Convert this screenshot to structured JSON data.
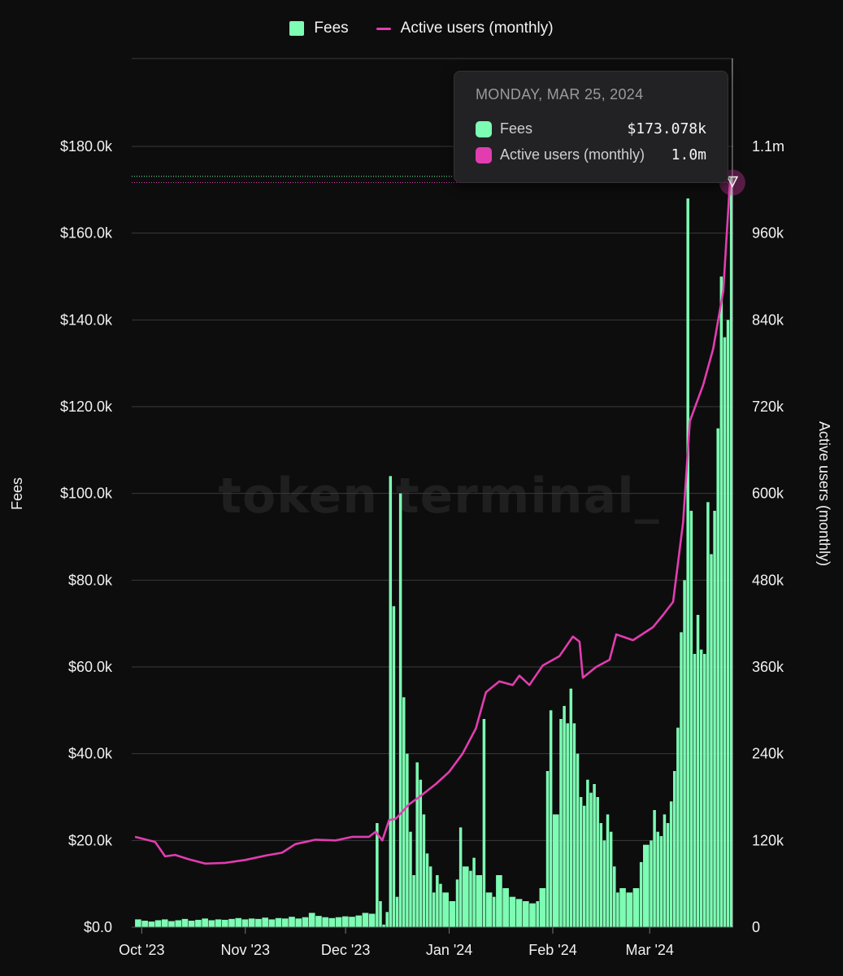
{
  "legend": {
    "fees_label": "Fees",
    "users_label": "Active users (monthly)"
  },
  "watermark": "token terminal_",
  "tooltip": {
    "date": "MONDAY, MAR 25, 2024",
    "fees_label": "Fees",
    "fees_value": "$173.078k",
    "users_label": "Active users (monthly)",
    "users_value": "1.0m"
  },
  "colors": {
    "background": "#0d0d0d",
    "fees": "#7dfcb3",
    "users": "#e23db0",
    "grid": "#3a3a3a"
  },
  "chart_data": {
    "type": "bar",
    "xlabel": "",
    "ylabel": "Fees",
    "y2label": "Active users (monthly)",
    "ylim": [
      0,
      180000
    ],
    "y2lim": [
      0,
      1080000
    ],
    "grid": true,
    "legend_position": "top-center",
    "x_tick_labels": [
      "Oct '23",
      "Nov '23",
      "Dec '23",
      "Jan '24",
      "Feb '24",
      "Mar '24"
    ],
    "y_tick_labels": [
      "$0.0",
      "$20.0k",
      "$40.0k",
      "$60.0k",
      "$80.0k",
      "$100.0k",
      "$120.0k",
      "$140.0k",
      "$160.0k",
      "$180.0k"
    ],
    "y2_tick_labels": [
      "0",
      "120k",
      "240k",
      "360k",
      "480k",
      "600k",
      "720k",
      "840k",
      "960k",
      "1.1m"
    ],
    "series": [
      {
        "name": "Fees",
        "type": "bar",
        "axis": "left",
        "points": [
          [
            "2023-09-29",
            1800
          ],
          [
            "2023-10-01",
            1500
          ],
          [
            "2023-10-03",
            1300
          ],
          [
            "2023-10-05",
            1600
          ],
          [
            "2023-10-07",
            1800
          ],
          [
            "2023-10-09",
            1400
          ],
          [
            "2023-10-11",
            1600
          ],
          [
            "2023-10-13",
            1900
          ],
          [
            "2023-10-15",
            1500
          ],
          [
            "2023-10-17",
            1700
          ],
          [
            "2023-10-19",
            2000
          ],
          [
            "2023-10-21",
            1600
          ],
          [
            "2023-10-23",
            1800
          ],
          [
            "2023-10-25",
            1700
          ],
          [
            "2023-10-27",
            1900
          ],
          [
            "2023-10-29",
            2100
          ],
          [
            "2023-10-31",
            1800
          ],
          [
            "2023-11-02",
            2000
          ],
          [
            "2023-11-04",
            1900
          ],
          [
            "2023-11-06",
            2200
          ],
          [
            "2023-11-08",
            1800
          ],
          [
            "2023-11-10",
            2100
          ],
          [
            "2023-11-12",
            2000
          ],
          [
            "2023-11-14",
            2400
          ],
          [
            "2023-11-16",
            2000
          ],
          [
            "2023-11-18",
            2300
          ],
          [
            "2023-11-20",
            3300
          ],
          [
            "2023-11-22",
            2600
          ],
          [
            "2023-11-24",
            2300
          ],
          [
            "2023-11-26",
            2100
          ],
          [
            "2023-11-28",
            2300
          ],
          [
            "2023-11-30",
            2500
          ],
          [
            "2023-12-02",
            2400
          ],
          [
            "2023-12-04",
            2700
          ],
          [
            "2023-12-06",
            3300
          ],
          [
            "2023-12-08",
            3100
          ],
          [
            "2023-12-10",
            24000
          ],
          [
            "2023-12-11",
            6000
          ],
          [
            "2023-12-12",
            600
          ],
          [
            "2023-12-13",
            3500
          ],
          [
            "2023-12-14",
            104000
          ],
          [
            "2023-12-15",
            74000
          ],
          [
            "2023-12-16",
            7000
          ],
          [
            "2023-12-17",
            100000
          ],
          [
            "2023-12-18",
            53000
          ],
          [
            "2023-12-19",
            40000
          ],
          [
            "2023-12-20",
            22000
          ],
          [
            "2023-12-21",
            12000
          ],
          [
            "2023-12-22",
            38000
          ],
          [
            "2023-12-23",
            34000
          ],
          [
            "2023-12-24",
            26000
          ],
          [
            "2023-12-25",
            17000
          ],
          [
            "2023-12-26",
            14000
          ],
          [
            "2023-12-27",
            8000
          ],
          [
            "2023-12-28",
            12000
          ],
          [
            "2023-12-29",
            10000
          ],
          [
            "2023-12-30",
            8000
          ],
          [
            "2024-01-01",
            6000
          ],
          [
            "2024-01-03",
            11000
          ],
          [
            "2024-01-04",
            23000
          ],
          [
            "2024-01-05",
            14000
          ],
          [
            "2024-01-07",
            13000
          ],
          [
            "2024-01-08",
            16000
          ],
          [
            "2024-01-09",
            12000
          ],
          [
            "2024-01-11",
            48000
          ],
          [
            "2024-01-12",
            8000
          ],
          [
            "2024-01-14",
            7000
          ],
          [
            "2024-01-15",
            12000
          ],
          [
            "2024-01-17",
            9000
          ],
          [
            "2024-01-19",
            7000
          ],
          [
            "2024-01-21",
            6500
          ],
          [
            "2024-01-23",
            6000
          ],
          [
            "2024-01-25",
            5500
          ],
          [
            "2024-01-27",
            6000
          ],
          [
            "2024-01-28",
            9000
          ],
          [
            "2024-01-30",
            36000
          ],
          [
            "2024-01-31",
            50000
          ],
          [
            "2024-02-01",
            26000
          ],
          [
            "2024-02-03",
            48000
          ],
          [
            "2024-02-04",
            51000
          ],
          [
            "2024-02-05",
            47000
          ],
          [
            "2024-02-06",
            55000
          ],
          [
            "2024-02-07",
            47000
          ],
          [
            "2024-02-08",
            40000
          ],
          [
            "2024-02-09",
            30000
          ],
          [
            "2024-02-10",
            28000
          ],
          [
            "2024-02-11",
            34000
          ],
          [
            "2024-02-12",
            31000
          ],
          [
            "2024-02-13",
            33000
          ],
          [
            "2024-02-14",
            30000
          ],
          [
            "2024-02-15",
            24000
          ],
          [
            "2024-02-16",
            20000
          ],
          [
            "2024-02-17",
            26000
          ],
          [
            "2024-02-18",
            22000
          ],
          [
            "2024-02-19",
            14000
          ],
          [
            "2024-02-20",
            8000
          ],
          [
            "2024-02-21",
            9000
          ],
          [
            "2024-02-23",
            8000
          ],
          [
            "2024-02-25",
            9000
          ],
          [
            "2024-02-27",
            15000
          ],
          [
            "2024-02-28",
            19000
          ],
          [
            "2024-03-01",
            20000
          ],
          [
            "2024-03-02",
            27000
          ],
          [
            "2024-03-03",
            22000
          ],
          [
            "2024-03-04",
            21000
          ],
          [
            "2024-03-05",
            26000
          ],
          [
            "2024-03-06",
            24000
          ],
          [
            "2024-03-07",
            29000
          ],
          [
            "2024-03-08",
            36000
          ],
          [
            "2024-03-09",
            46000
          ],
          [
            "2024-03-10",
            68000
          ],
          [
            "2024-03-11",
            80000
          ],
          [
            "2024-03-12",
            168000
          ],
          [
            "2024-03-13",
            96000
          ],
          [
            "2024-03-14",
            63000
          ],
          [
            "2024-03-15",
            72000
          ],
          [
            "2024-03-16",
            64000
          ],
          [
            "2024-03-17",
            63000
          ],
          [
            "2024-03-18",
            98000
          ],
          [
            "2024-03-19",
            86000
          ],
          [
            "2024-03-20",
            96000
          ],
          [
            "2024-03-21",
            115000
          ],
          [
            "2024-03-22",
            150000
          ],
          [
            "2024-03-23",
            136000
          ],
          [
            "2024-03-24",
            140000
          ],
          [
            "2024-03-25",
            173078
          ]
        ]
      },
      {
        "name": "Active users (monthly)",
        "type": "line",
        "axis": "right",
        "points": [
          [
            "2023-09-29",
            125000
          ],
          [
            "2023-10-05",
            118000
          ],
          [
            "2023-10-08",
            98000
          ],
          [
            "2023-10-11",
            100000
          ],
          [
            "2023-10-15",
            94000
          ],
          [
            "2023-10-20",
            88000
          ],
          [
            "2023-10-26",
            89000
          ],
          [
            "2023-11-01",
            93000
          ],
          [
            "2023-11-07",
            99000
          ],
          [
            "2023-11-12",
            103000
          ],
          [
            "2023-11-16",
            115000
          ],
          [
            "2023-11-22",
            121000
          ],
          [
            "2023-11-28",
            120000
          ],
          [
            "2023-12-03",
            125000
          ],
          [
            "2023-12-08",
            125000
          ],
          [
            "2023-12-10",
            132000
          ],
          [
            "2023-12-12",
            120000
          ],
          [
            "2023-12-14",
            148000
          ],
          [
            "2023-12-16",
            150000
          ],
          [
            "2023-12-20",
            170000
          ],
          [
            "2023-12-23",
            180000
          ],
          [
            "2023-12-28",
            198000
          ],
          [
            "2024-01-01",
            215000
          ],
          [
            "2024-01-05",
            240000
          ],
          [
            "2024-01-09",
            275000
          ],
          [
            "2024-01-12",
            325000
          ],
          [
            "2024-01-16",
            340000
          ],
          [
            "2024-01-20",
            335000
          ],
          [
            "2024-01-22",
            348000
          ],
          [
            "2024-01-25",
            335000
          ],
          [
            "2024-01-29",
            362000
          ],
          [
            "2024-02-03",
            375000
          ],
          [
            "2024-02-07",
            402000
          ],
          [
            "2024-02-09",
            395000
          ],
          [
            "2024-02-10",
            345000
          ],
          [
            "2024-02-14",
            360000
          ],
          [
            "2024-02-18",
            370000
          ],
          [
            "2024-02-20",
            405000
          ],
          [
            "2024-02-25",
            397000
          ],
          [
            "2024-02-28",
            406000
          ],
          [
            "2024-03-02",
            415000
          ],
          [
            "2024-03-05",
            432000
          ],
          [
            "2024-03-08",
            450000
          ],
          [
            "2024-03-11",
            560000
          ],
          [
            "2024-03-13",
            700000
          ],
          [
            "2024-03-17",
            750000
          ],
          [
            "2024-03-20",
            800000
          ],
          [
            "2024-03-23",
            880000
          ],
          [
            "2024-03-25",
            1030000
          ]
        ]
      }
    ]
  }
}
